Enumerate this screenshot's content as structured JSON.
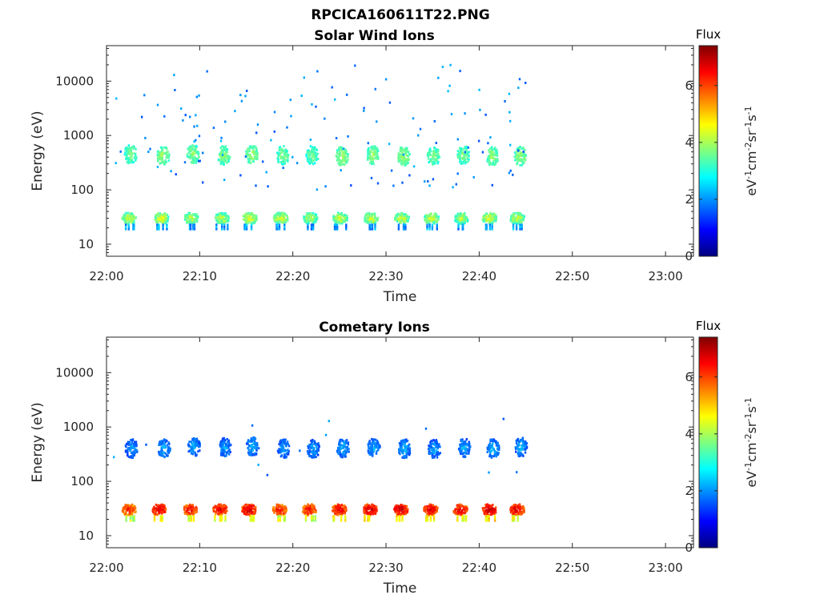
{
  "figure": {
    "title": "RPCICA160611T22.PNG"
  },
  "colorbar": {
    "colors": [
      "#00007f",
      "#0000ff",
      "#007fff",
      "#00ffff",
      "#7fff7f",
      "#ffff00",
      "#ff7f00",
      "#ff0000",
      "#7f0000"
    ],
    "range": [
      0,
      7.4
    ],
    "ticks": [
      "0",
      "2",
      "4",
      "6"
    ]
  },
  "chart_data": [
    {
      "type": "heatmap",
      "title": "Solar Wind Ions",
      "xlabel": "Time",
      "ylabel": "Energy (eV)",
      "xticks": [
        "22:00",
        "22:10",
        "22:20",
        "22:30",
        "22:40",
        "22:50",
        "23:00"
      ],
      "xlim": [
        "22:00",
        "23:03"
      ],
      "yscale": "log",
      "yticks": [
        "10",
        "100",
        "1000",
        "10000"
      ],
      "ylim": [
        6,
        45000
      ],
      "colorbar_title": "Flux",
      "colorbar_label": "eV-1cm-2sr-1s-1",
      "bursts": [
        {
          "time": "22:02.5",
          "energy": 450,
          "flux": 3.4
        },
        {
          "time": "22:06.0",
          "energy": 420,
          "flux": 3.6
        },
        {
          "time": "22:09.2",
          "energy": 450,
          "flux": 3.5
        },
        {
          "time": "22:12.5",
          "energy": 430,
          "flux": 3.5
        },
        {
          "time": "22:15.5",
          "energy": 450,
          "flux": 3.6
        },
        {
          "time": "22:18.8",
          "energy": 430,
          "flux": 3.4
        },
        {
          "time": "22:22.0",
          "energy": 430,
          "flux": 3.3
        },
        {
          "time": "22:25.2",
          "energy": 420,
          "flux": 3.6
        },
        {
          "time": "22:28.5",
          "energy": 430,
          "flux": 3.5
        },
        {
          "time": "22:31.8",
          "energy": 420,
          "flux": 3.6
        },
        {
          "time": "22:35.0",
          "energy": 410,
          "flux": 3.4
        },
        {
          "time": "22:38.2",
          "energy": 440,
          "flux": 3.4
        },
        {
          "time": "22:41.3",
          "energy": 420,
          "flux": 3.5
        },
        {
          "time": "22:44.3",
          "energy": 420,
          "flux": 3.6
        }
      ],
      "low_bands": [
        {
          "time": "22:02.3",
          "energy": 30,
          "flux": 3.8
        },
        {
          "time": "22:05.8",
          "energy": 30,
          "flux": 3.9
        },
        {
          "time": "22:09.0",
          "energy": 30,
          "flux": 3.7
        },
        {
          "time": "22:12.3",
          "energy": 30,
          "flux": 3.7
        },
        {
          "time": "22:15.3",
          "energy": 30,
          "flux": 3.9
        },
        {
          "time": "22:18.6",
          "energy": 30,
          "flux": 3.8
        },
        {
          "time": "22:21.8",
          "energy": 30,
          "flux": 3.6
        },
        {
          "time": "22:25.0",
          "energy": 30,
          "flux": 3.7
        },
        {
          "time": "22:28.3",
          "energy": 30,
          "flux": 3.8
        },
        {
          "time": "22:31.6",
          "energy": 30,
          "flux": 3.8
        },
        {
          "time": "22:34.8",
          "energy": 30,
          "flux": 3.8
        },
        {
          "time": "22:38.0",
          "energy": 30,
          "flux": 3.7
        },
        {
          "time": "22:41.0",
          "energy": 30,
          "flux": 3.9
        },
        {
          "time": "22:44.0",
          "energy": 30,
          "flux": 3.8
        }
      ]
    },
    {
      "type": "heatmap",
      "title": "Cometary Ions",
      "xlabel": "Time",
      "ylabel": "Energy (eV)",
      "xticks": [
        "22:00",
        "22:10",
        "22:20",
        "22:30",
        "22:40",
        "22:50",
        "23:00"
      ],
      "xlim": [
        "22:00",
        "23:03"
      ],
      "yscale": "log",
      "yticks": [
        "10",
        "100",
        "1000",
        "10000"
      ],
      "ylim": [
        6,
        45000
      ],
      "colorbar_title": "Flux",
      "colorbar_label": "eV-1cm-2sr-1s-1",
      "bursts": [
        {
          "time": "22:02.6",
          "energy": 400,
          "flux": 1.8
        },
        {
          "time": "22:06.1",
          "energy": 400,
          "flux": 1.9
        },
        {
          "time": "22:09.3",
          "energy": 430,
          "flux": 1.9
        },
        {
          "time": "22:12.6",
          "energy": 420,
          "flux": 1.8
        },
        {
          "time": "22:15.6",
          "energy": 440,
          "flux": 1.9
        },
        {
          "time": "22:18.9",
          "energy": 400,
          "flux": 1.8
        },
        {
          "time": "22:22.1",
          "energy": 390,
          "flux": 1.8
        },
        {
          "time": "22:25.3",
          "energy": 410,
          "flux": 1.9
        },
        {
          "time": "22:28.6",
          "energy": 420,
          "flux": 1.9
        },
        {
          "time": "22:31.9",
          "energy": 400,
          "flux": 1.9
        },
        {
          "time": "22:35.1",
          "energy": 390,
          "flux": 1.8
        },
        {
          "time": "22:38.3",
          "energy": 410,
          "flux": 1.9
        },
        {
          "time": "22:41.4",
          "energy": 400,
          "flux": 1.9
        },
        {
          "time": "22:44.4",
          "energy": 430,
          "flux": 1.9
        }
      ],
      "low_bands": [
        {
          "time": "22:02.3",
          "energy": 30,
          "flux": 5.8
        },
        {
          "time": "22:05.6",
          "energy": 30,
          "flux": 6.3
        },
        {
          "time": "22:08.9",
          "energy": 30,
          "flux": 6.1
        },
        {
          "time": "22:12.1",
          "energy": 30,
          "flux": 6.2
        },
        {
          "time": "22:15.2",
          "energy": 30,
          "flux": 6.4
        },
        {
          "time": "22:18.5",
          "energy": 30,
          "flux": 6.0
        },
        {
          "time": "22:21.7",
          "energy": 30,
          "flux": 6.0
        },
        {
          "time": "22:24.9",
          "energy": 30,
          "flux": 6.2
        },
        {
          "time": "22:28.2",
          "energy": 30,
          "flux": 6.4
        },
        {
          "time": "22:31.5",
          "energy": 30,
          "flux": 6.5
        },
        {
          "time": "22:34.7",
          "energy": 30,
          "flux": 6.3
        },
        {
          "time": "22:37.9",
          "energy": 30,
          "flux": 6.2
        },
        {
          "time": "22:41.0",
          "energy": 30,
          "flux": 6.5
        },
        {
          "time": "22:44.0",
          "energy": 30,
          "flux": 6.3
        }
      ]
    }
  ]
}
